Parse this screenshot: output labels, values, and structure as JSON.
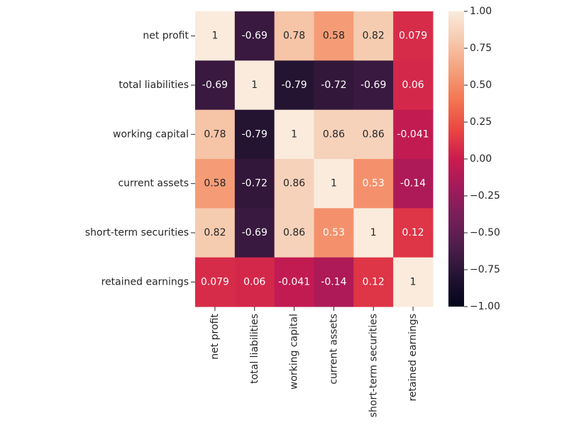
{
  "chart_data": {
    "type": "heatmap",
    "xcategories": [
      "net profit",
      "total liabilities",
      "working capital",
      "current assets",
      "short-term securities",
      "retained earnings"
    ],
    "ycategories": [
      "net profit",
      "total liabilities",
      "working capital",
      "current assets",
      "short-term securities",
      "retained earnings"
    ],
    "values": [
      [
        1,
        -0.69,
        0.78,
        0.58,
        0.82,
        0.079
      ],
      [
        -0.69,
        1,
        -0.79,
        -0.72,
        -0.69,
        0.06
      ],
      [
        0.78,
        -0.79,
        1,
        0.86,
        0.86,
        -0.041
      ],
      [
        0.58,
        -0.72,
        0.86,
        1,
        0.53,
        -0.14
      ],
      [
        0.82,
        -0.69,
        0.86,
        0.53,
        1,
        0.12
      ],
      [
        0.079,
        0.06,
        -0.041,
        -0.14,
        0.12,
        1
      ]
    ],
    "clim": [
      -1,
      1
    ],
    "cticks": [
      {
        "value": -1,
        "label": "−1.00"
      },
      {
        "value": -0.75,
        "label": "−0.75"
      },
      {
        "value": -0.5,
        "label": "−0.50"
      },
      {
        "value": -0.25,
        "label": "−0.25"
      },
      {
        "value": 0,
        "label": "0.00"
      },
      {
        "value": 0.25,
        "label": "0.25"
      },
      {
        "value": 0.5,
        "label": "0.50"
      },
      {
        "value": 0.75,
        "label": "0.75"
      },
      {
        "value": 1,
        "label": "1.00"
      }
    ],
    "colorscale": [
      "#03051a",
      "#221331",
      "#4c1d4b",
      "#751f58",
      "#a11a5b",
      "#cb1b4f",
      "#ea4741",
      "#f37651",
      "#f5a07a",
      "#f6c8ac",
      "#faebdd"
    ]
  }
}
